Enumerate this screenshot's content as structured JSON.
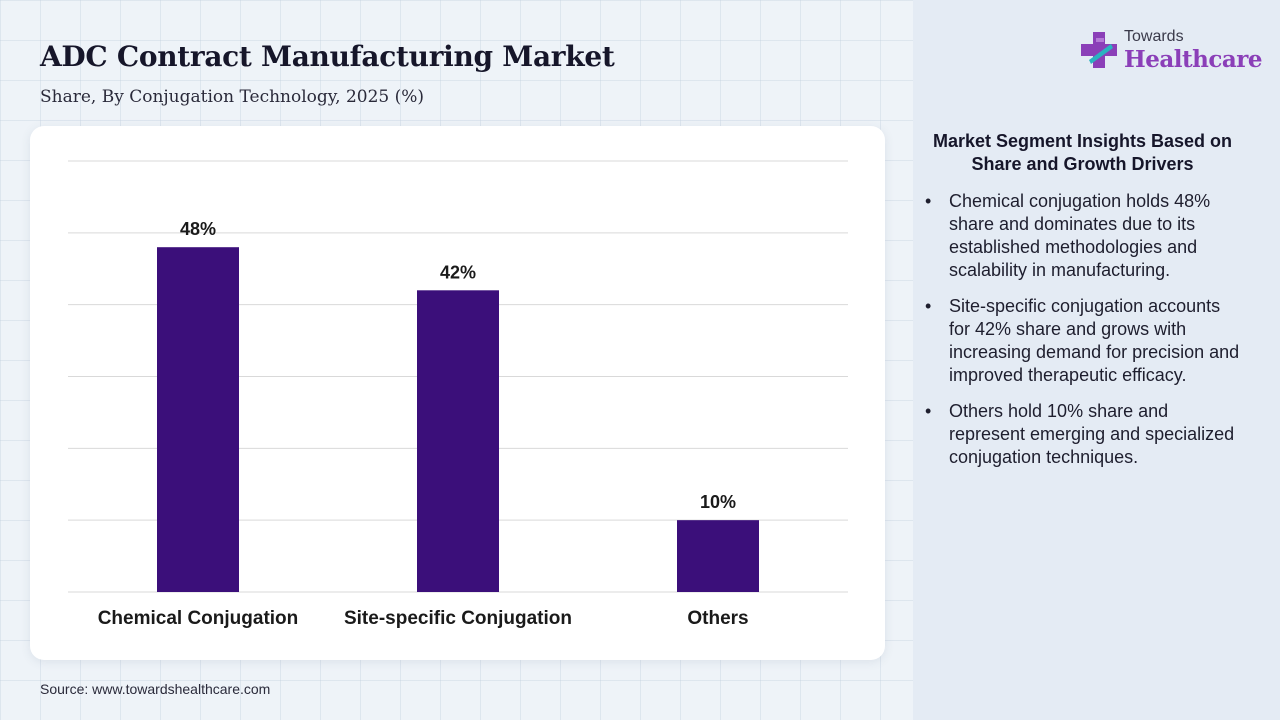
{
  "header": {
    "title": "ADC Contract Manufacturing Market",
    "subtitle": "Share, By Conjugation Technology, 2025 (%)"
  },
  "logo": {
    "top_text": "Towards",
    "main_text": "Healthcare",
    "icon": "medical-cross-icon",
    "colors": {
      "purple": "#8b3fb8",
      "teal": "#2bb3c0"
    }
  },
  "chart_data": {
    "type": "bar",
    "categories": [
      "Chemical Conjugation",
      "Site-specific Conjugation",
      "Others"
    ],
    "values": [
      48,
      42,
      10
    ],
    "value_labels": [
      "48%",
      "42%",
      "10%"
    ],
    "title": "",
    "xlabel": "",
    "ylabel": "",
    "ylim": [
      0,
      60
    ],
    "grid": true,
    "bar_color": "#3b0f7a"
  },
  "insights": {
    "title": "Market Segment Insights Based on Share and Growth Drivers",
    "bullet": "•",
    "items": [
      "Chemical conjugation holds 48% share and dominates due to its established methodologies and scalability in manufacturing.",
      "Site-specific conjugation accounts for 42% share and grows with increasing demand for precision and improved therapeutic efficacy.",
      "Others hold 10% share and represent emerging and specialized conjugation techniques."
    ]
  },
  "footer": {
    "source": "Source: www.towardshealthcare.com"
  }
}
